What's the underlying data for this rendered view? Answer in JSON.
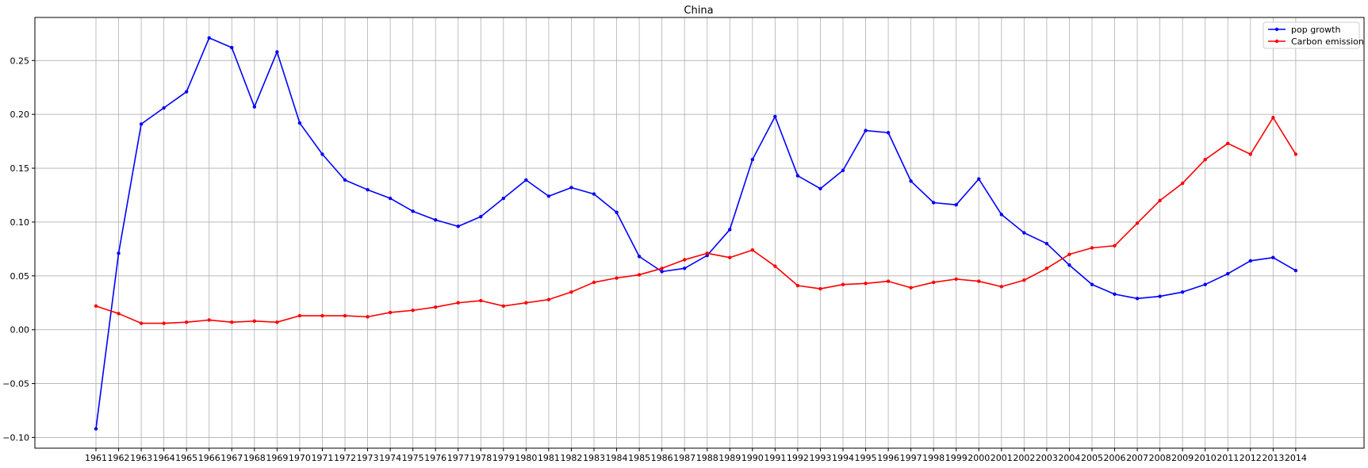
{
  "chart_data": {
    "type": "line",
    "title": "China",
    "xlabel": "",
    "ylabel": "",
    "categories": [
      "1961",
      "1962",
      "1963",
      "1964",
      "1965",
      "1966",
      "1967",
      "1968",
      "1969",
      "1970",
      "1971",
      "1972",
      "1973",
      "1974",
      "1975",
      "1976",
      "1977",
      "1978",
      "1979",
      "1980",
      "1981",
      "1982",
      "1983",
      "1984",
      "1985",
      "1986",
      "1987",
      "1988",
      "1989",
      "1990",
      "1991",
      "1992",
      "1993",
      "1994",
      "1995",
      "1996",
      "1997",
      "1998",
      "1999",
      "2000",
      "2001",
      "2002",
      "2003",
      "2004",
      "2005",
      "2006",
      "2007",
      "2008",
      "2009",
      "2010",
      "2011",
      "2012",
      "2013",
      "2014"
    ],
    "ylim": [
      -0.11,
      0.29
    ],
    "yticks": [
      -0.1,
      -0.05,
      0.0,
      0.05,
      0.1,
      0.15,
      0.2,
      0.25
    ],
    "ytick_labels": [
      "−0.10",
      "−0.05",
      "0.00",
      "0.05",
      "0.10",
      "0.15",
      "0.20",
      "0.25"
    ],
    "grid": true,
    "legend_position": "top-right",
    "series": [
      {
        "name": "pop growth",
        "color": "#0000ff",
        "marker": "dot",
        "values": [
          -0.092,
          0.071,
          0.191,
          0.206,
          0.221,
          0.271,
          0.262,
          0.207,
          0.258,
          0.192,
          0.163,
          0.139,
          0.13,
          0.122,
          0.11,
          0.102,
          0.096,
          0.105,
          0.122,
          0.139,
          0.124,
          0.132,
          0.126,
          0.109,
          0.068,
          0.054,
          0.057,
          0.069,
          0.093,
          0.158,
          0.198,
          0.143,
          0.131,
          0.148,
          0.185,
          0.183,
          0.138,
          0.118,
          0.116,
          0.14,
          0.107,
          0.09,
          0.08,
          0.06,
          0.042,
          0.033,
          0.029,
          0.031,
          0.035,
          0.042,
          0.052,
          0.064,
          0.067,
          0.055
        ]
      },
      {
        "name": "Carbon emission",
        "color": "#ff0000",
        "marker": "dot",
        "values": [
          0.022,
          0.015,
          0.006,
          0.006,
          0.007,
          0.009,
          0.007,
          0.008,
          0.007,
          0.013,
          0.013,
          0.013,
          0.012,
          0.016,
          0.018,
          0.021,
          0.025,
          0.027,
          0.022,
          0.025,
          0.028,
          0.035,
          0.044,
          0.048,
          0.051,
          0.057,
          0.065,
          0.071,
          0.067,
          0.074,
          0.059,
          0.041,
          0.038,
          0.042,
          0.043,
          0.045,
          0.039,
          0.044,
          0.047,
          0.045,
          0.04,
          0.046,
          0.057,
          0.07,
          0.076,
          0.078,
          0.099,
          0.12,
          0.136,
          0.158,
          0.173,
          0.163,
          0.197,
          0.163
        ]
      }
    ]
  }
}
